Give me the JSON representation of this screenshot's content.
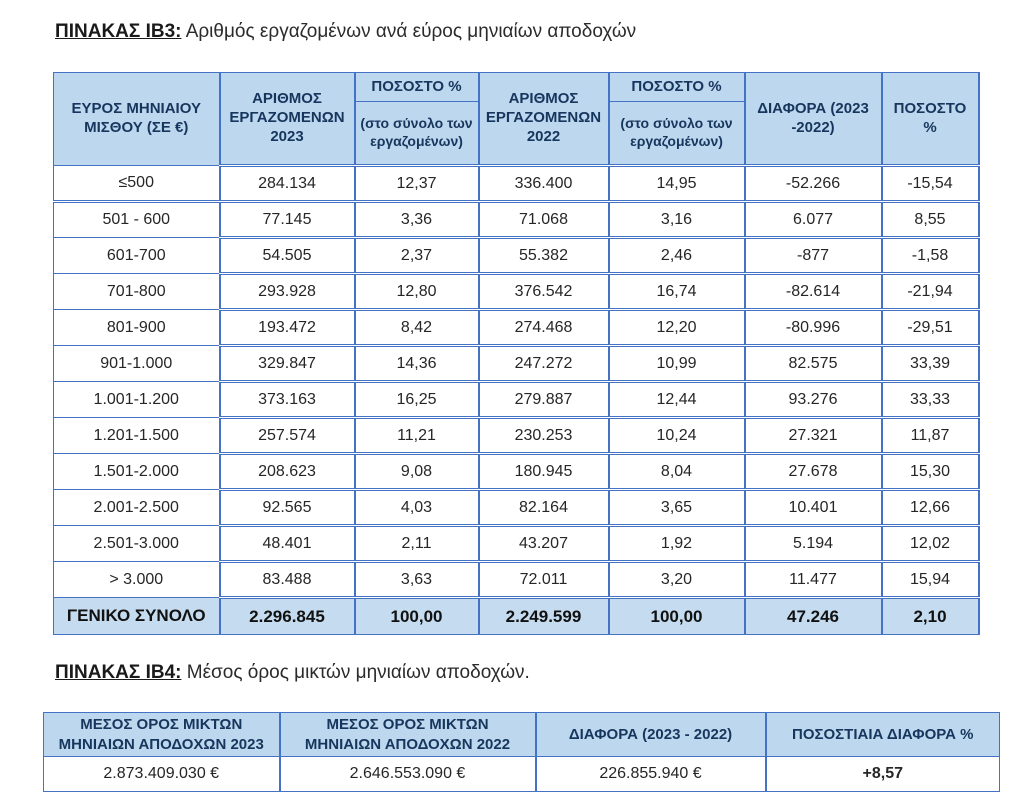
{
  "colors": {
    "header_bg": "#BDD7EE",
    "total_bg": "#C5DCF0",
    "border_blue": "#4472C4",
    "header_text": "#17365D",
    "body_text": "#262626"
  },
  "table1": {
    "title_label": "ΠΙΝΑΚΑΣ ΙΒ3:",
    "title_text": " Αριθμός εργαζομένων ανά εύρος μηνιαίων αποδοχών",
    "headers": {
      "col1": "ΕΥΡΟΣ ΜΗΝΙΑΙΟΥ ΜΙΣΘΟΥ (ΣΕ €)",
      "col2": "ΑΡΙΘΜΟΣ ΕΡΓΑΖΟΜΕΝΩΝ 2023",
      "col3_top": "ΠΟΣΟΣΤΟ %",
      "col3_sub": "(στο σύνολο των εργαζομένων)",
      "col4": "ΑΡΙΘΜΟΣ ΕΡΓΑΖΟΜΕΝΩΝ 2022",
      "col5_top": "ΠΟΣΟΣΤΟ %",
      "col5_sub": "(στο σύνολο των εργαζομένων)",
      "col6": "ΔΙΑΦΟΡΑ (2023 -2022)",
      "col7": "ΠΟΣΟΣΤΟ %"
    },
    "rows": [
      [
        "≤500",
        "284.134",
        "12,37",
        "336.400",
        "14,95",
        "-52.266",
        "-15,54"
      ],
      [
        "501 - 600",
        "77.145",
        "3,36",
        "71.068",
        "3,16",
        "6.077",
        "8,55"
      ],
      [
        "601-700",
        "54.505",
        "2,37",
        "55.382",
        "2,46",
        "-877",
        "-1,58"
      ],
      [
        "701-800",
        "293.928",
        "12,80",
        "376.542",
        "16,74",
        "-82.614",
        "-21,94"
      ],
      [
        "801-900",
        "193.472",
        "8,42",
        "274.468",
        "12,20",
        "-80.996",
        "-29,51"
      ],
      [
        "901-1.000",
        "329.847",
        "14,36",
        "247.272",
        "10,99",
        "82.575",
        "33,39"
      ],
      [
        "1.001-1.200",
        "373.163",
        "16,25",
        "279.887",
        "12,44",
        "93.276",
        "33,33"
      ],
      [
        "1.201-1.500",
        "257.574",
        "11,21",
        "230.253",
        "10,24",
        "27.321",
        "11,87"
      ],
      [
        "1.501-2.000",
        "208.623",
        "9,08",
        "180.945",
        "8,04",
        "27.678",
        "15,30"
      ],
      [
        "2.001-2.500",
        "92.565",
        "4,03",
        "82.164",
        "3,65",
        "10.401",
        "12,66"
      ],
      [
        "2.501-3.000",
        "48.401",
        "2,11",
        "43.207",
        "1,92",
        "5.194",
        "12,02"
      ],
      [
        "> 3.000",
        "83.488",
        "3,63",
        "72.011",
        "3,20",
        "11.477",
        "15,94"
      ]
    ],
    "total": [
      "ΓΕΝΙΚΟ ΣΥΝΟΛΟ",
      "2.296.845",
      "100,00",
      "2.249.599",
      "100,00",
      "47.246",
      "2,10"
    ]
  },
  "table2": {
    "title_label": "ΠΙΝΑΚΑΣ ΙΒ4:",
    "title_text": " Μέσος όρος μικτών μηνιαίων αποδοχών.",
    "headers": {
      "col1": "ΜΕΣΟΣ ΟΡΟΣ ΜΙΚΤΩΝ ΜΗΝΙΑΙΩΝ ΑΠΟΔΟΧΩΝ 2023",
      "col2": "ΜΕΣΟΣ ΟΡΟΣ ΜΙΚΤΩΝ ΜΗΝΙΑΙΩΝ ΑΠΟΔΟΧΩΝ 2022",
      "col3": "ΔΙΑΦΟΡΑ (2023 - 2022)",
      "col4": "ΠΟΣΟΣΤΙΑΙΑ ΔΙΑΦΟΡΑ %"
    },
    "values": [
      "2.873.409.030 €",
      "2.646.553.090 €",
      "226.855.940 €",
      "+8,57"
    ]
  }
}
